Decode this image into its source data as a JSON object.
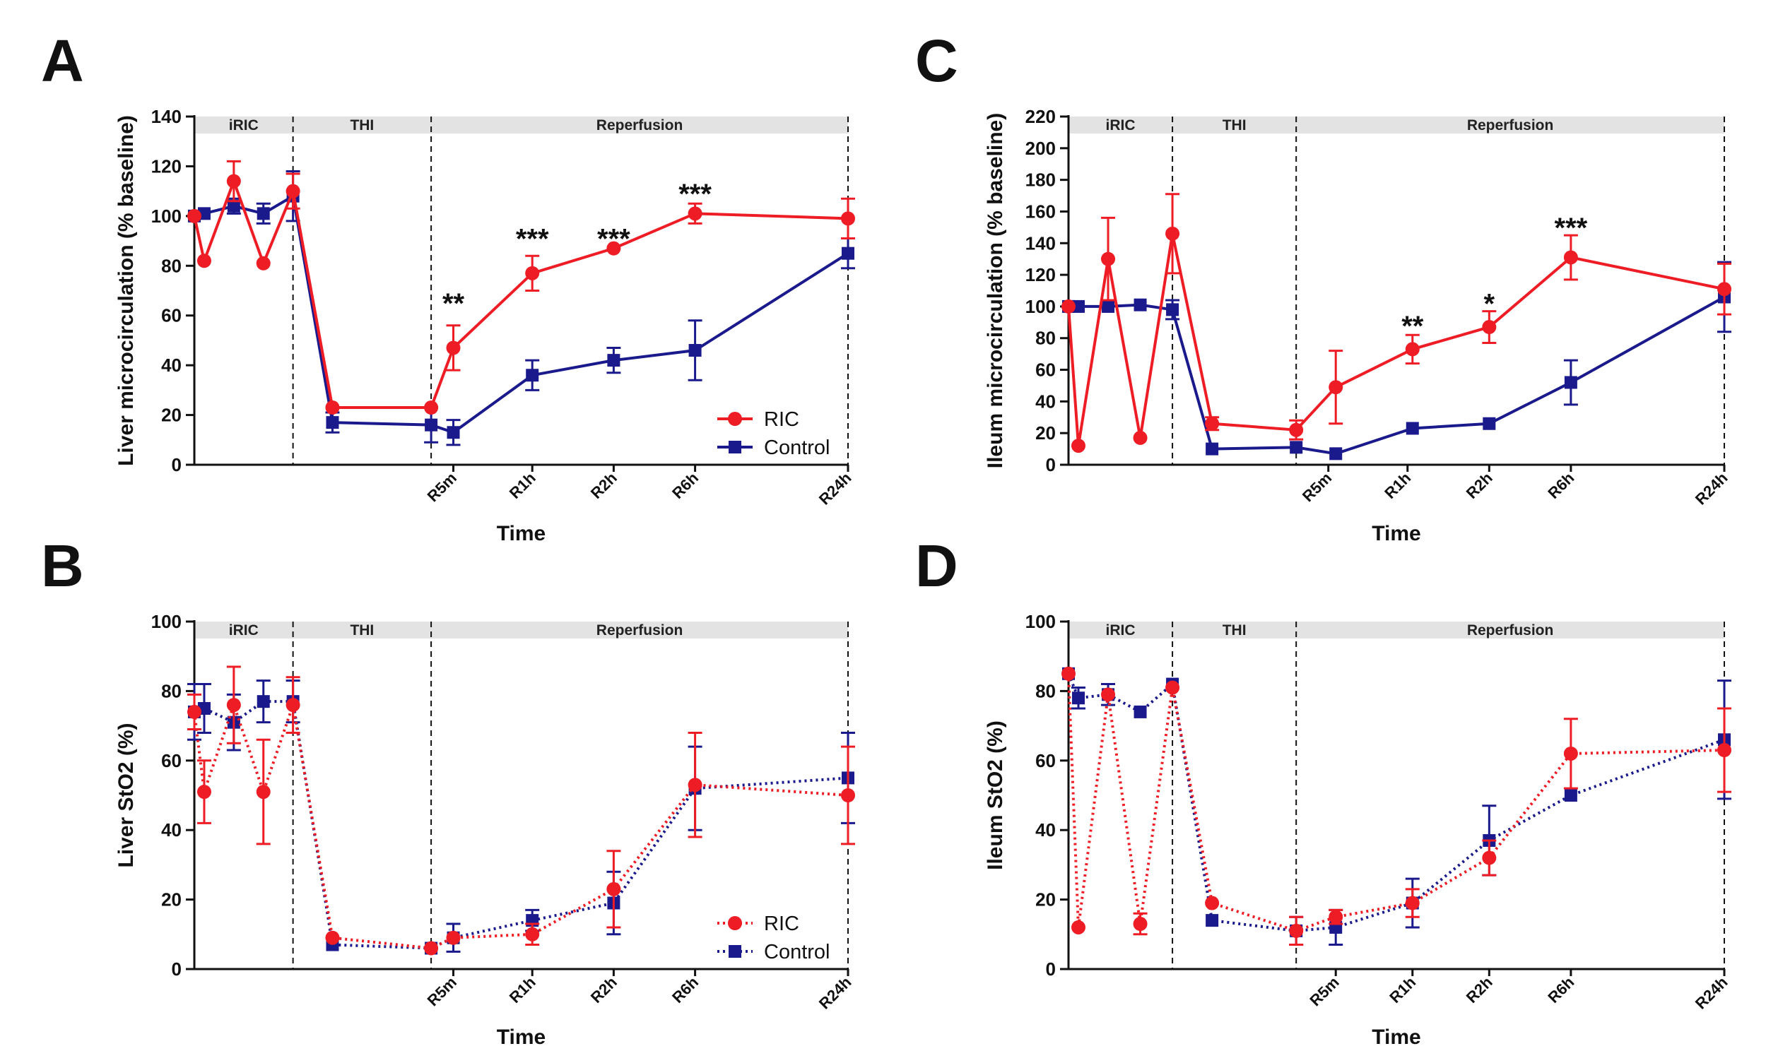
{
  "colors": {
    "ric": "#ee1c24",
    "control": "#1a1a8c",
    "phase_band": "#e3e3e3",
    "axis": "#111111"
  },
  "chart_data": [
    {
      "id": "A",
      "type": "line",
      "panel_label": "A",
      "title": "",
      "xlabel": "Time",
      "ylabel": "Liver microcirculation (% baseline)",
      "ylim": [
        0,
        140
      ],
      "yticks": [
        0,
        20,
        40,
        60,
        80,
        100,
        120,
        140
      ],
      "xlim": [
        0,
        26.5
      ],
      "xticks": [
        {
          "x": 10.5,
          "label": "R5m"
        },
        {
          "x": 13.7,
          "label": "R1h"
        },
        {
          "x": 17.0,
          "label": "R2h"
        },
        {
          "x": 20.3,
          "label": "R6h"
        },
        {
          "x": 26.5,
          "label": "R24h"
        }
      ],
      "phases": [
        {
          "label": "iRIC",
          "start": 0,
          "end": 4
        },
        {
          "label": "THI",
          "start": 4,
          "end": 9.6
        },
        {
          "label": "Reperfusion",
          "start": 9.6,
          "end": 26.5
        }
      ],
      "phase_boundaries": [
        4,
        9.6,
        26.5
      ],
      "line_style": "solid",
      "legend": {
        "position": "bottom-right",
        "entries": [
          "RIC",
          "Control"
        ]
      },
      "series": [
        {
          "name": "RIC",
          "marker": "circle",
          "x": [
            0,
            0.4,
            1.6,
            2.8,
            4,
            5.6,
            9.6,
            10.5,
            13.7,
            17.0,
            20.3,
            26.5
          ],
          "y": [
            100,
            82,
            114,
            81,
            110,
            23,
            23,
            47,
            77,
            87,
            101,
            99
          ],
          "err": [
            0,
            0,
            8,
            0,
            7,
            0,
            0,
            9,
            7,
            0,
            4,
            8
          ]
        },
        {
          "name": "Control",
          "marker": "square",
          "x": [
            0,
            0.4,
            1.6,
            2.8,
            4,
            5.6,
            9.6,
            10.5,
            13.7,
            17.0,
            20.3,
            26.5
          ],
          "y": [
            100,
            101,
            104,
            101,
            108,
            17,
            16,
            13,
            36,
            42,
            46,
            85
          ],
          "err": [
            0,
            0,
            3,
            4,
            10,
            4,
            7,
            5,
            6,
            5,
            12,
            6
          ]
        }
      ],
      "annotations": [
        {
          "x": 10.5,
          "y": 65,
          "text": "**"
        },
        {
          "x": 13.7,
          "y": 91,
          "text": "***"
        },
        {
          "x": 17.0,
          "y": 91,
          "text": "***"
        },
        {
          "x": 20.3,
          "y": 109,
          "text": "***"
        }
      ]
    },
    {
      "id": "B",
      "type": "line",
      "panel_label": "B",
      "title": "",
      "xlabel": "Time",
      "ylabel": "Liver StO2 (%)",
      "ylim": [
        0,
        100
      ],
      "yticks": [
        0,
        20,
        40,
        60,
        80,
        100
      ],
      "xlim": [
        0,
        26.5
      ],
      "xticks": [
        {
          "x": 10.5,
          "label": "R5m"
        },
        {
          "x": 13.7,
          "label": "R1h"
        },
        {
          "x": 17.0,
          "label": "R2h"
        },
        {
          "x": 20.3,
          "label": "R6h"
        },
        {
          "x": 26.5,
          "label": "R24h"
        }
      ],
      "phases": [
        {
          "label": "iRIC",
          "start": 0,
          "end": 4
        },
        {
          "label": "THI",
          "start": 4,
          "end": 9.6
        },
        {
          "label": "Reperfusion",
          "start": 9.6,
          "end": 26.5
        }
      ],
      "phase_boundaries": [
        4,
        9.6,
        26.5
      ],
      "line_style": "dotted",
      "legend": {
        "position": "bottom-right",
        "entries": [
          "RIC",
          "Control"
        ]
      },
      "series": [
        {
          "name": "RIC",
          "marker": "circle",
          "x": [
            0,
            0.4,
            1.6,
            2.8,
            4,
            5.6,
            9.6,
            10.5,
            13.7,
            17.0,
            20.3,
            26.5
          ],
          "y": [
            74,
            51,
            76,
            51,
            76,
            9,
            6,
            9,
            10,
            23,
            53,
            50
          ],
          "err": [
            5,
            9,
            11,
            15,
            8,
            0,
            0,
            0,
            3,
            11,
            15,
            14
          ]
        },
        {
          "name": "Control",
          "marker": "square",
          "x": [
            0,
            0.4,
            1.6,
            2.8,
            4,
            5.6,
            9.6,
            10.5,
            13.7,
            17.0,
            20.3,
            26.5
          ],
          "y": [
            74,
            75,
            71,
            77,
            77,
            7,
            6,
            9,
            14,
            19,
            52,
            55
          ],
          "err": [
            8,
            7,
            8,
            6,
            6,
            0,
            0,
            4,
            3,
            9,
            12,
            13
          ]
        }
      ],
      "annotations": []
    },
    {
      "id": "C",
      "type": "line",
      "panel_label": "C",
      "title": "",
      "xlabel": "Time",
      "ylabel": "Ileum microcirculation (% baseline)",
      "ylim": [
        0,
        220
      ],
      "yticks": [
        0,
        20,
        40,
        60,
        80,
        100,
        120,
        140,
        160,
        180,
        200,
        220
      ],
      "xlim": [
        0,
        26.5
      ],
      "xticks": [
        {
          "x": 10.5,
          "label": "R5m"
        },
        {
          "x": 13.7,
          "label": "R1h"
        },
        {
          "x": 17.0,
          "label": "R2h"
        },
        {
          "x": 20.3,
          "label": "R6h"
        },
        {
          "x": 26.5,
          "label": "R24h"
        }
      ],
      "phases": [
        {
          "label": "iRIC",
          "start": 0,
          "end": 4.2
        },
        {
          "label": "THI",
          "start": 4.2,
          "end": 9.2
        },
        {
          "label": "Reperfusion",
          "start": 9.2,
          "end": 26.5
        }
      ],
      "phase_boundaries": [
        4.2,
        9.2,
        26.5
      ],
      "line_style": "solid",
      "legend": null,
      "series": [
        {
          "name": "RIC",
          "marker": "circle",
          "x": [
            0,
            0.4,
            1.6,
            2.9,
            4.2,
            5.8,
            9.2,
            10.8,
            13.9,
            17.0,
            20.3,
            26.5
          ],
          "y": [
            100,
            12,
            130,
            17,
            146,
            26,
            22,
            49,
            73,
            87,
            131,
            111
          ],
          "err": [
            0,
            0,
            26,
            0,
            25,
            4,
            6,
            23,
            9,
            10,
            14,
            16
          ]
        },
        {
          "name": "Control",
          "marker": "square",
          "x": [
            0,
            0.4,
            1.6,
            2.9,
            4.2,
            5.8,
            9.2,
            10.8,
            13.9,
            17.0,
            20.3,
            26.5
          ],
          "y": [
            100,
            100,
            100,
            101,
            98,
            10,
            11,
            7,
            23,
            26,
            52,
            106
          ],
          "err": [
            0,
            0,
            0,
            0,
            6,
            0,
            0,
            0,
            0,
            0,
            14,
            22
          ]
        }
      ],
      "annotations": [
        {
          "x": 13.9,
          "y": 88,
          "text": "**"
        },
        {
          "x": 17.0,
          "y": 102,
          "text": "*"
        },
        {
          "x": 20.3,
          "y": 150,
          "text": "***"
        }
      ]
    },
    {
      "id": "D",
      "type": "line",
      "panel_label": "D",
      "title": "",
      "xlabel": "Time",
      "ylabel": "Ileum StO2 (%)",
      "ylim": [
        0,
        100
      ],
      "yticks": [
        0,
        20,
        40,
        60,
        80,
        100
      ],
      "xlim": [
        0,
        26.5
      ],
      "xticks": [
        {
          "x": 10.8,
          "label": "R5m"
        },
        {
          "x": 13.9,
          "label": "R1h"
        },
        {
          "x": 17.0,
          "label": "R2h"
        },
        {
          "x": 20.3,
          "label": "R6h"
        },
        {
          "x": 26.5,
          "label": "R24h"
        }
      ],
      "phases": [
        {
          "label": "iRIC",
          "start": 0,
          "end": 4.2
        },
        {
          "label": "THI",
          "start": 4.2,
          "end": 9.2
        },
        {
          "label": "Reperfusion",
          "start": 9.2,
          "end": 26.5
        }
      ],
      "phase_boundaries": [
        4.2,
        9.2,
        26.5
      ],
      "line_style": "dotted",
      "legend": null,
      "series": [
        {
          "name": "RIC",
          "marker": "circle",
          "x": [
            0,
            0.4,
            1.6,
            2.9,
            4.2,
            5.8,
            9.2,
            10.8,
            13.9,
            17.0,
            20.3,
            26.5
          ],
          "y": [
            85,
            12,
            79,
            13,
            81,
            19,
            11,
            15,
            19,
            32,
            62,
            63
          ],
          "err": [
            0,
            0,
            0,
            3,
            0,
            0,
            4,
            2,
            4,
            5,
            10,
            12
          ]
        },
        {
          "name": "Control",
          "marker": "square",
          "x": [
            0,
            0.4,
            1.6,
            2.9,
            4.2,
            5.8,
            9.2,
            10.8,
            13.9,
            17.0,
            20.3,
            26.5
          ],
          "y": [
            85,
            78,
            79,
            74,
            82,
            14,
            11,
            12,
            19,
            37,
            50,
            66
          ],
          "err": [
            0,
            3,
            3,
            0,
            0,
            0,
            4,
            5,
            7,
            10,
            0,
            17
          ]
        }
      ],
      "annotations": []
    }
  ]
}
